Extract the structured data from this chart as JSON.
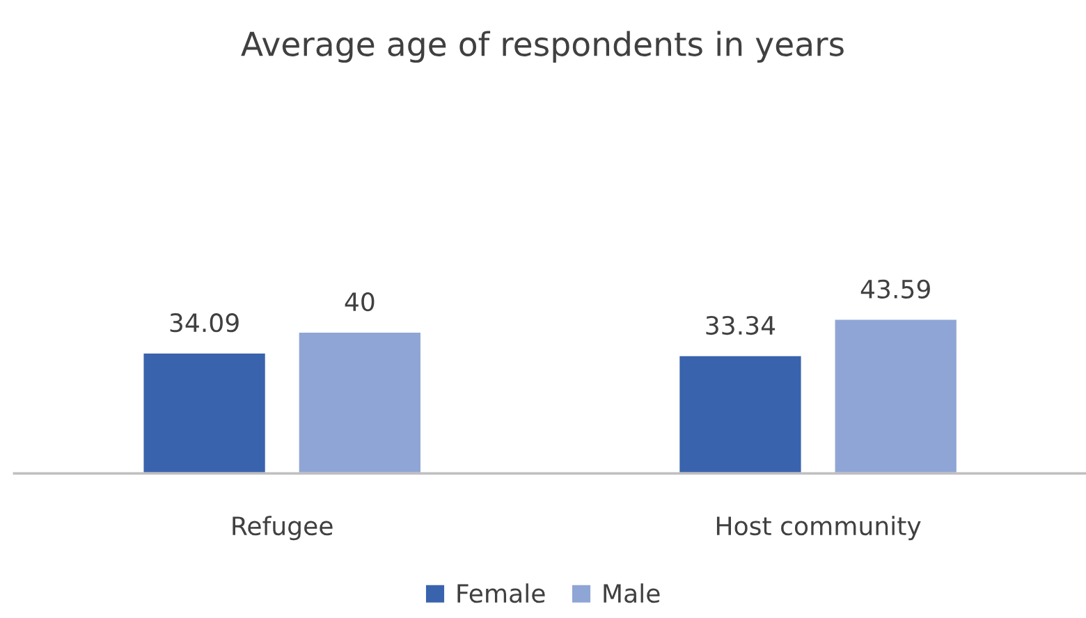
{
  "chart_data": {
    "type": "bar",
    "title": "Average age of respondents in years",
    "categories": [
      "Refugee",
      "Host community"
    ],
    "series": [
      {
        "name": "Female",
        "color": "#3a63ad",
        "values": [
          34.09,
          33.34
        ]
      },
      {
        "name": "Male",
        "color": "#8fa5d6",
        "values": [
          40,
          43.59
        ]
      }
    ],
    "data_labels": true,
    "legend": "bottom",
    "grid": false
  }
}
